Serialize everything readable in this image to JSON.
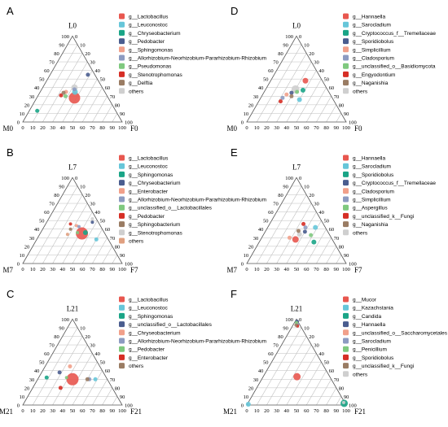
{
  "colors": {
    "grid": "#bfbfbf",
    "axis": "#000000"
  },
  "chart_data": [
    {
      "type": "scatter",
      "panel_letter": "A",
      "vertex_labels": {
        "top": "L0",
        "left": "M0",
        "right": "F0"
      },
      "ticks": [
        0,
        10,
        20,
        30,
        40,
        50,
        60,
        70,
        80,
        90,
        100
      ],
      "legend": [
        {
          "name": "g__Lactobacillus",
          "color": "#e8574f"
        },
        {
          "name": "g__Leuconostoc",
          "color": "#66c6d9"
        },
        {
          "name": "g__Chryseobacterium",
          "color": "#1aa587"
        },
        {
          "name": "g__Pedobacter",
          "color": "#4a5d8f"
        },
        {
          "name": "g__Sphingomonas",
          "color": "#f1a08a"
        },
        {
          "name": "g__Allorhizobium-Neorhizobium-Pararhizobium-Rhizobium",
          "color": "#8d9bc1"
        },
        {
          "name": "g__Pseudomonas",
          "color": "#7fc97f"
        },
        {
          "name": "g__Stenotrophomonas",
          "color": "#d62e25"
        },
        {
          "name": "g__Delftia",
          "color": "#9a7c63"
        },
        {
          "name": "others",
          "color": "#cfcfcf"
        }
      ],
      "points": [
        {
          "series": "g__Lactobacillus",
          "L": 28,
          "F": 38,
          "size": 7
        },
        {
          "series": "g__Leuconostoc",
          "L": 35,
          "F": 35,
          "size": 3.5
        },
        {
          "series": "g__Chryseobacterium",
          "L": 13,
          "F": 8,
          "size": 2.5
        },
        {
          "series": "g__Pedobacter",
          "L": 55,
          "F": 38,
          "size": 2.5
        },
        {
          "series": "g__Sphingomonas",
          "L": 35,
          "F": 26,
          "size": 2.5
        },
        {
          "series": "g__Allorhizobium-Neorhizobium-Pararhizobium-Rhizobium",
          "L": 38,
          "F": 33,
          "size": 2.5
        },
        {
          "series": "g__Pseudomonas",
          "L": 30,
          "F": 28,
          "size": 2.5
        },
        {
          "series": "g__Stenotrophomonas",
          "L": 31,
          "F": 23,
          "size": 2.5
        },
        {
          "series": "g__Delftia",
          "L": 34,
          "F": 24,
          "size": 2.5
        },
        {
          "series": "others",
          "L": 40,
          "F": 32,
          "size": 4
        }
      ]
    },
    {
      "type": "scatter",
      "panel_letter": "D",
      "vertex_labels": {
        "top": "L0",
        "left": "M0",
        "right": "F0"
      },
      "ticks": [
        0,
        10,
        20,
        30,
        40,
        50,
        60,
        70,
        80,
        90,
        100
      ],
      "legend": [
        {
          "name": "g__Hannaella",
          "color": "#e8574f"
        },
        {
          "name": "g__Sarocladium",
          "color": "#66c6d9"
        },
        {
          "name": "g__Cryptococcus_f__Tremellaceae",
          "color": "#1aa587"
        },
        {
          "name": "g__Sporidiobolus",
          "color": "#4a5d8f"
        },
        {
          "name": "g__Simplicillium",
          "color": "#f1a08a"
        },
        {
          "name": "g__Cladosporium",
          "color": "#8d9bc1"
        },
        {
          "name": "g__unclassified_o__Basidiomycota",
          "color": "#7fc97f"
        },
        {
          "name": "g__Engyodontium",
          "color": "#d62e25"
        },
        {
          "name": "g__Naganishia",
          "color": "#9a7c63"
        },
        {
          "name": "others",
          "color": "#cfcfcf"
        }
      ],
      "points": [
        {
          "series": "g__Hannaella",
          "L": 48,
          "F": 35,
          "size": 3.5
        },
        {
          "series": "g__Sarocladium",
          "L": 26,
          "F": 40,
          "size": 3
        },
        {
          "series": "g__Cryptococcus_f__Tremellaceae",
          "L": 37,
          "F": 38,
          "size": 3
        },
        {
          "series": "g__Sporidiobolus",
          "L": 34,
          "F": 28,
          "size": 2.5
        },
        {
          "series": "g__Simplicillium",
          "L": 32,
          "F": 24,
          "size": 2.5
        },
        {
          "series": "g__Cladosporium",
          "L": 28,
          "F": 22,
          "size": 2.5
        },
        {
          "series": "g__unclassified_o__Basidiomycota",
          "L": 35,
          "F": 33,
          "size": 2.5
        },
        {
          "series": "g__Engyodontium",
          "L": 24,
          "F": 22,
          "size": 2.5
        },
        {
          "series": "g__Naganishia",
          "L": 30,
          "F": 30,
          "size": 2.5
        },
        {
          "series": "others",
          "L": 38,
          "F": 30,
          "size": 5
        }
      ]
    },
    {
      "type": "scatter",
      "panel_letter": "B",
      "vertex_labels": {
        "top": "L7",
        "left": "M7",
        "right": "F7"
      },
      "ticks": [
        0,
        10,
        20,
        30,
        40,
        50,
        60,
        70,
        80,
        90,
        100
      ],
      "legend": [
        {
          "name": "g__Lactobacillus",
          "color": "#e8574f"
        },
        {
          "name": "g__Leuconostoc",
          "color": "#66c6d9"
        },
        {
          "name": "g__Sphingomonas",
          "color": "#1aa587"
        },
        {
          "name": "g__Chryseobacterium",
          "color": "#4a5d8f"
        },
        {
          "name": "g__Enterobacter",
          "color": "#f1a08a"
        },
        {
          "name": "g__Allorhizobium-Neorhizobium-Pararhizobium-Rhizobium",
          "color": "#8d9bc1"
        },
        {
          "name": "g__unclassified_o__Lactobacillales",
          "color": "#7fc97f"
        },
        {
          "name": "g__Pedobacter",
          "color": "#d62e25"
        },
        {
          "name": "g__Sphingobacterium",
          "color": "#9a7c63"
        },
        {
          "name": "g__Stenotrophomonas",
          "color": "#cfcfcf"
        },
        {
          "name": "others",
          "color": "#e0a080"
        }
      ],
      "points": [
        {
          "series": "g__Lactobacillus",
          "L": 35,
          "F": 42,
          "size": 7.5
        },
        {
          "series": "g__Leuconostoc",
          "L": 28,
          "F": 60,
          "size": 2.5
        },
        {
          "series": "g__Sphingomonas",
          "L": 36,
          "F": 45,
          "size": 3
        },
        {
          "series": "g__Chryseobacterium",
          "L": 48,
          "F": 46,
          "size": 2
        },
        {
          "series": "g__Enterobacter",
          "L": 44,
          "F": 32,
          "size": 2
        },
        {
          "series": "g__Allorhizobium-Neorhizobium-Pararhizobium-Rhizobium",
          "L": 43,
          "F": 35,
          "size": 2
        },
        {
          "series": "g__unclassified_o__Lactobacillales",
          "L": 36,
          "F": 37,
          "size": 2
        },
        {
          "series": "g__Pedobacter",
          "L": 46,
          "F": 25,
          "size": 2
        },
        {
          "series": "g__Sphingobacterium",
          "L": 40,
          "F": 28,
          "size": 2
        },
        {
          "series": "g__Stenotrophomonas",
          "L": 52,
          "F": 44,
          "size": 2
        },
        {
          "series": "others",
          "L": 34,
          "F": 28,
          "size": 2
        }
      ]
    },
    {
      "type": "scatter",
      "panel_letter": "E",
      "vertex_labels": {
        "top": "L7",
        "left": "M7",
        "right": "F7"
      },
      "ticks": [
        0,
        10,
        20,
        30,
        40,
        50,
        60,
        70,
        80,
        90,
        100
      ],
      "legend": [
        {
          "name": "g__Hannaella",
          "color": "#e8574f"
        },
        {
          "name": "g__Sarocladium",
          "color": "#66c6d9"
        },
        {
          "name": "g__Sporidiobolus",
          "color": "#1aa587"
        },
        {
          "name": "g__Cryptococcus_f__Tremellaceae",
          "color": "#4a5d8f"
        },
        {
          "name": "g__Cladosporium",
          "color": "#f1a08a"
        },
        {
          "name": "g__Simplicillium",
          "color": "#8d9bc1"
        },
        {
          "name": "g__Aspergillus",
          "color": "#7fc97f"
        },
        {
          "name": "g__unclassified_k__Fungi",
          "color": "#d62e25"
        },
        {
          "name": "g__Naganishia",
          "color": "#9a7c63"
        },
        {
          "name": "others",
          "color": "#cfcfcf"
        }
      ],
      "points": [
        {
          "series": "g__Hannaella",
          "L": 28,
          "F": 35,
          "size": 4
        },
        {
          "series": "g__Sarocladium",
          "L": 42,
          "F": 48,
          "size": 3
        },
        {
          "series": "g__Sporidiobolus",
          "L": 25,
          "F": 55,
          "size": 3
        },
        {
          "series": "g__Cryptococcus_f__Tremellaceae",
          "L": 37,
          "F": 40,
          "size": 2.5
        },
        {
          "series": "g__Cladosporium",
          "L": 30,
          "F": 28,
          "size": 2.5
        },
        {
          "series": "g__Simplicillium",
          "L": 42,
          "F": 38,
          "size": 2.5
        },
        {
          "series": "g__Aspergillus",
          "L": 33,
          "F": 48,
          "size": 2.5
        },
        {
          "series": "g__unclassified_k__Fungi",
          "L": 46,
          "F": 34,
          "size": 2.5
        },
        {
          "series": "g__Naganishia",
          "L": 38,
          "F": 33,
          "size": 2.5
        },
        {
          "series": "others",
          "L": 34,
          "F": 36,
          "size": 3
        }
      ]
    },
    {
      "type": "scatter",
      "panel_letter": "C",
      "vertex_labels": {
        "top": "L21",
        "left": "M21",
        "right": "F21"
      },
      "ticks": [
        0,
        10,
        20,
        30,
        40,
        50,
        60,
        70,
        80,
        90,
        100
      ],
      "legend": [
        {
          "name": "g__Lactobacillus",
          "color": "#e8574f"
        },
        {
          "name": "g__Leuconostoc",
          "color": "#66c6d9"
        },
        {
          "name": "g__Sphingomonas",
          "color": "#1aa587"
        },
        {
          "name": "g__unclassified_o__Lactobacillales",
          "color": "#4a5d8f"
        },
        {
          "name": "g__Chryseobacterium",
          "color": "#f1a08a"
        },
        {
          "name": "g__Allorhizobium-Neorhizobium-Pararhizobium-Rhizobium",
          "color": "#8d9bc1"
        },
        {
          "name": "g__Pedobacter",
          "color": "#7fc97f"
        },
        {
          "name": "g__Enterobacter",
          "color": "#d62e25"
        },
        {
          "name": "others",
          "color": "#9a7c63"
        }
      ],
      "points": [
        {
          "series": "g__Lactobacillus",
          "L": 30,
          "F": 35,
          "size": 7.5
        },
        {
          "series": "g__Leuconostoc",
          "L": 30,
          "F": 58,
          "size": 2.5
        },
        {
          "series": "g__Sphingomonas",
          "L": 32,
          "F": 8,
          "size": 2.5
        },
        {
          "series": "g__unclassified_o__Lactobacillales",
          "L": 38,
          "F": 18,
          "size": 2.5
        },
        {
          "series": "g__Chryseobacterium",
          "L": 45,
          "F": 25,
          "size": 2.5
        },
        {
          "series": "g__Allorhizobium-Neorhizobium-Pararhizobium-Rhizobium",
          "L": 30,
          "F": 52,
          "size": 2.5
        },
        {
          "series": "g__Pedobacter",
          "L": 32,
          "F": 28,
          "size": 2
        },
        {
          "series": "g__Enterobacter",
          "L": 20,
          "F": 28,
          "size": 2.5
        },
        {
          "series": "others",
          "L": 30,
          "F": 50,
          "size": 2.5
        }
      ]
    },
    {
      "type": "scatter",
      "panel_letter": "F",
      "vertex_labels": {
        "top": "L21",
        "left": "M21",
        "right": "F21"
      },
      "ticks": [
        0,
        10,
        20,
        30,
        40,
        50,
        60,
        70,
        80,
        90,
        100
      ],
      "legend": [
        {
          "name": "g__Mucor",
          "color": "#e8574f"
        },
        {
          "name": "g__Kazachstania",
          "color": "#66c6d9"
        },
        {
          "name": "g__Candida",
          "color": "#1aa587"
        },
        {
          "name": "g__Hannaella",
          "color": "#4a5d8f"
        },
        {
          "name": "g__unclassified_o__Saccharomycetales",
          "color": "#f1a08a"
        },
        {
          "name": "g__Sarocladium",
          "color": "#8d9bc1"
        },
        {
          "name": "g__Penicillium",
          "color": "#7fc97f"
        },
        {
          "name": "g__Sporidiobolus",
          "color": "#d62e25"
        },
        {
          "name": "g__unclassified_k__Fungi",
          "color": "#9a7c63"
        },
        {
          "name": "others",
          "color": "#cfcfcf"
        }
      ],
      "points": [
        {
          "series": "g__Mucor",
          "L": 33,
          "F": 34,
          "size": 4.5
        },
        {
          "series": "g__Kazachstania",
          "L": 1,
          "F": 1,
          "size": 3
        },
        {
          "series": "g__Candida",
          "L": 2,
          "F": 97,
          "size": 4.5
        },
        {
          "series": "g__Hannaella",
          "L": 97,
          "F": 2,
          "size": 2.5
        },
        {
          "series": "g__unclassified_o__Saccharomycetales",
          "L": 95,
          "F": 3,
          "size": 2
        },
        {
          "series": "g__Sarocladium",
          "L": 94,
          "F": 4,
          "size": 2
        },
        {
          "series": "g__Penicillium",
          "L": 96,
          "F": 2,
          "size": 2
        },
        {
          "series": "g__Sporidiobolus",
          "L": 92,
          "F": 5,
          "size": 2
        },
        {
          "series": "g__unclassified_k__Fungi",
          "L": 93,
          "F": 3,
          "size": 2
        },
        {
          "series": "others",
          "L": 3,
          "F": 96,
          "size": 2
        }
      ]
    }
  ]
}
